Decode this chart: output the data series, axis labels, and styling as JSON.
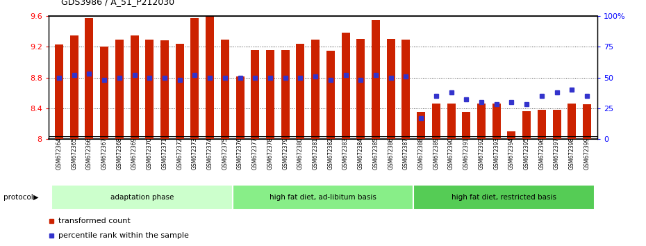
{
  "title": "GDS3986 / A_51_P212030",
  "ylim_left": [
    8.0,
    9.6
  ],
  "ylim_right": [
    0,
    100
  ],
  "yticks_left": [
    8.0,
    8.4,
    8.8,
    9.2,
    9.6
  ],
  "ytick_labels_left": [
    "8",
    "8.4",
    "8.8",
    "9.2",
    "9.6"
  ],
  "yticks_right": [
    0,
    25,
    50,
    75,
    100
  ],
  "ytick_labels_right": [
    "0",
    "25",
    "50",
    "75",
    "100%"
  ],
  "bar_base": 8.0,
  "bar_color": "#cc2200",
  "marker_color": "#3333cc",
  "bar_width": 0.55,
  "categories": [
    "GSM672364",
    "GSM672365",
    "GSM672366",
    "GSM672367",
    "GSM672368",
    "GSM672369",
    "GSM672370",
    "GSM672371",
    "GSM672372",
    "GSM672373",
    "GSM672374",
    "GSM672375",
    "GSM672376",
    "GSM672377",
    "GSM672378",
    "GSM672379",
    "GSM672380",
    "GSM672381",
    "GSM672382",
    "GSM672383",
    "GSM672384",
    "GSM672385",
    "GSM672386",
    "GSM672387",
    "GSM672388",
    "GSM672389",
    "GSM672390",
    "GSM672391",
    "GSM672392",
    "GSM672393",
    "GSM672394",
    "GSM672395",
    "GSM672396",
    "GSM672397",
    "GSM672398",
    "GSM672399"
  ],
  "transformed_count": [
    9.23,
    9.35,
    9.57,
    9.2,
    9.29,
    9.35,
    9.29,
    9.28,
    9.24,
    9.57,
    9.59,
    9.29,
    8.81,
    9.16,
    9.16,
    9.16,
    9.24,
    9.29,
    9.15,
    9.38,
    9.3,
    9.55,
    9.3,
    9.29,
    8.35,
    8.46,
    8.46,
    8.35,
    8.46,
    8.46,
    8.1,
    8.36,
    8.38,
    8.38,
    8.46,
    8.45
  ],
  "percentile_rank": [
    50,
    52,
    53,
    48,
    50,
    52,
    50,
    50,
    48,
    52,
    50,
    50,
    50,
    50,
    50,
    50,
    50,
    51,
    48,
    52,
    48,
    52,
    50,
    51,
    17,
    35,
    38,
    32,
    30,
    28,
    30,
    28,
    35,
    38,
    40,
    35
  ],
  "groups": [
    {
      "label": "adaptation phase",
      "start": 0,
      "end": 11,
      "color": "#ccffcc"
    },
    {
      "label": "high fat diet, ad-libitum basis",
      "start": 12,
      "end": 23,
      "color": "#88ee88"
    },
    {
      "label": "high fat diet, restricted basis",
      "start": 24,
      "end": 35,
      "color": "#55cc55"
    }
  ],
  "protocol_label": "protocol",
  "legend": [
    {
      "label": "transformed count",
      "color": "#cc2200"
    },
    {
      "label": "percentile rank within the sample",
      "color": "#3333cc"
    }
  ],
  "xtick_bg": "#c8c8c8",
  "grid_color": "#555555",
  "grid_style": ":"
}
